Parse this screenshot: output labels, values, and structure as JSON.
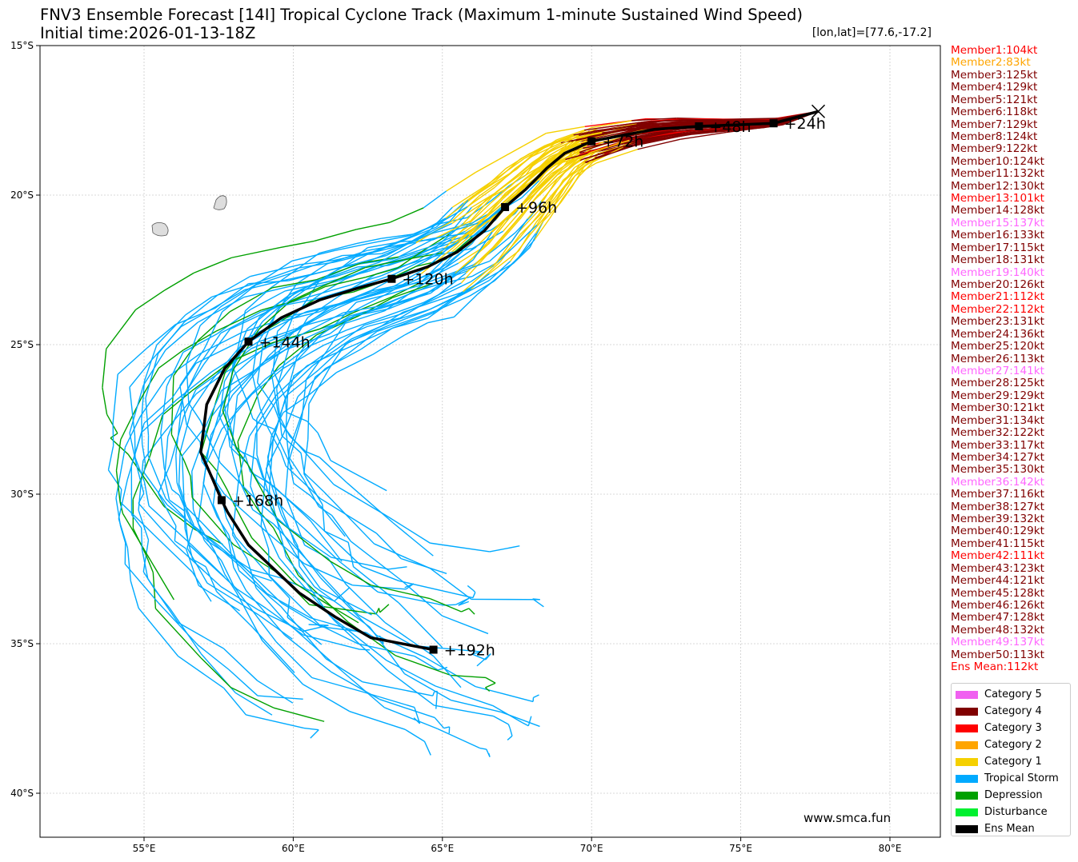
{
  "title": "FNV3 Ensemble Forecast [14I] Tropical Cyclone Track (Maximum 1-minute Sustained Wind Speed)",
  "subtitle": "Initial time:2026-01-13-18Z",
  "coord_readout": "[lon,lat]=[77.6,-17.2]",
  "watermark": "www.smca.fun",
  "colors": {
    "cat5": "#f060f0",
    "cat4": "#800000",
    "cat3": "#ff0000",
    "cat2": "#ffa500",
    "cat1": "#f5d000",
    "ts": "#00aaff",
    "td": "#00a000",
    "dist": "#00f030",
    "mean": "#000000"
  },
  "members": [
    {
      "label": "Member1:104kt",
      "cat": "cat3"
    },
    {
      "label": "Member2:83kt",
      "cat": "cat2"
    },
    {
      "label": "Member3:125kt",
      "cat": "cat4"
    },
    {
      "label": "Member4:129kt",
      "cat": "cat4"
    },
    {
      "label": "Member5:121kt",
      "cat": "cat4"
    },
    {
      "label": "Member6:118kt",
      "cat": "cat4"
    },
    {
      "label": "Member7:129kt",
      "cat": "cat4"
    },
    {
      "label": "Member8:124kt",
      "cat": "cat4"
    },
    {
      "label": "Member9:122kt",
      "cat": "cat4"
    },
    {
      "label": "Member10:124kt",
      "cat": "cat4"
    },
    {
      "label": "Member11:132kt",
      "cat": "cat4"
    },
    {
      "label": "Member12:130kt",
      "cat": "cat4"
    },
    {
      "label": "Member13:101kt",
      "cat": "cat3"
    },
    {
      "label": "Member14:128kt",
      "cat": "cat4"
    },
    {
      "label": "Member15:137kt",
      "cat": "cat5"
    },
    {
      "label": "Member16:133kt",
      "cat": "cat4"
    },
    {
      "label": "Member17:115kt",
      "cat": "cat4"
    },
    {
      "label": "Member18:131kt",
      "cat": "cat4"
    },
    {
      "label": "Member19:140kt",
      "cat": "cat5"
    },
    {
      "label": "Member20:126kt",
      "cat": "cat4"
    },
    {
      "label": "Member21:112kt",
      "cat": "cat3"
    },
    {
      "label": "Member22:112kt",
      "cat": "cat3"
    },
    {
      "label": "Member23:131kt",
      "cat": "cat4"
    },
    {
      "label": "Member24:136kt",
      "cat": "cat4"
    },
    {
      "label": "Member25:120kt",
      "cat": "cat4"
    },
    {
      "label": "Member26:113kt",
      "cat": "cat4"
    },
    {
      "label": "Member27:141kt",
      "cat": "cat5"
    },
    {
      "label": "Member28:125kt",
      "cat": "cat4"
    },
    {
      "label": "Member29:129kt",
      "cat": "cat4"
    },
    {
      "label": "Member30:121kt",
      "cat": "cat4"
    },
    {
      "label": "Member31:134kt",
      "cat": "cat4"
    },
    {
      "label": "Member32:122kt",
      "cat": "cat4"
    },
    {
      "label": "Member33:117kt",
      "cat": "cat4"
    },
    {
      "label": "Member34:127kt",
      "cat": "cat4"
    },
    {
      "label": "Member35:130kt",
      "cat": "cat4"
    },
    {
      "label": "Member36:142kt",
      "cat": "cat5"
    },
    {
      "label": "Member37:116kt",
      "cat": "cat4"
    },
    {
      "label": "Member38:127kt",
      "cat": "cat4"
    },
    {
      "label": "Member39:132kt",
      "cat": "cat4"
    },
    {
      "label": "Member40:129kt",
      "cat": "cat4"
    },
    {
      "label": "Member41:115kt",
      "cat": "cat4"
    },
    {
      "label": "Member42:111kt",
      "cat": "cat3"
    },
    {
      "label": "Member43:123kt",
      "cat": "cat4"
    },
    {
      "label": "Member44:121kt",
      "cat": "cat4"
    },
    {
      "label": "Member45:128kt",
      "cat": "cat4"
    },
    {
      "label": "Member46:126kt",
      "cat": "cat4"
    },
    {
      "label": "Member47:128kt",
      "cat": "cat4"
    },
    {
      "label": "Member48:132kt",
      "cat": "cat4"
    },
    {
      "label": "Member49:137kt",
      "cat": "cat5"
    },
    {
      "label": "Member50:113kt",
      "cat": "cat4"
    },
    {
      "label": "Ens Mean:112kt",
      "cat": "cat3"
    }
  ],
  "legend": [
    {
      "label": "Category 5",
      "key": "cat5"
    },
    {
      "label": "Category 4",
      "key": "cat4"
    },
    {
      "label": "Category 3",
      "key": "cat3"
    },
    {
      "label": "Category 2",
      "key": "cat2"
    },
    {
      "label": "Category 1",
      "key": "cat1"
    },
    {
      "label": "Tropical Storm",
      "key": "ts"
    },
    {
      "label": "Depression",
      "key": "td"
    },
    {
      "label": "Disturbance",
      "key": "dist"
    },
    {
      "label": "Ens Mean",
      "key": "mean"
    }
  ],
  "chart_data": {
    "type": "line",
    "xlim": [
      51.5,
      81.7
    ],
    "ylim": [
      -41.5,
      -15
    ],
    "grid": true,
    "x_ticks": [
      {
        "v": 55,
        "label": "55°E"
      },
      {
        "v": 60,
        "label": "60°E"
      },
      {
        "v": 65,
        "label": "65°E"
      },
      {
        "v": 70,
        "label": "70°E"
      },
      {
        "v": 75,
        "label": "75°E"
      },
      {
        "v": 80,
        "label": "80°E"
      }
    ],
    "y_ticks": [
      {
        "v": -15,
        "label": "15°S"
      },
      {
        "v": -20,
        "label": "20°S"
      },
      {
        "v": -25,
        "label": "25°S"
      },
      {
        "v": -30,
        "label": "30°S"
      },
      {
        "v": -35,
        "label": "35°S"
      },
      {
        "v": -40,
        "label": "40°S"
      }
    ],
    "initial_position": [
      77.6,
      -17.2
    ],
    "ens_mean_track": [
      [
        77.6,
        -17.2
      ],
      [
        76.1,
        -17.6
      ],
      [
        73.6,
        -17.7
      ],
      [
        72.1,
        -17.8
      ],
      [
        70.0,
        -18.2
      ],
      [
        69.1,
        -18.6
      ],
      [
        68.5,
        -19.1
      ],
      [
        67.8,
        -19.8
      ],
      [
        67.1,
        -20.4
      ],
      [
        66.4,
        -21.2
      ],
      [
        65.5,
        -21.9
      ],
      [
        64.5,
        -22.4
      ],
      [
        63.3,
        -22.8
      ],
      [
        62.2,
        -23.1
      ],
      [
        60.9,
        -23.5
      ],
      [
        59.6,
        -24.1
      ],
      [
        58.5,
        -24.9
      ],
      [
        57.7,
        -25.8
      ],
      [
        57.1,
        -27.0
      ],
      [
        56.9,
        -28.6
      ],
      [
        57.3,
        -29.5
      ],
      [
        57.6,
        -30.2
      ],
      [
        57.8,
        -30.6
      ],
      [
        58.5,
        -31.7
      ],
      [
        60.2,
        -33.3
      ],
      [
        61.4,
        -34.1
      ],
      [
        62.6,
        -34.8
      ],
      [
        64.7,
        -35.2
      ]
    ],
    "ens_mean_markers": [
      {
        "label": "+24h",
        "lon": 76.1,
        "lat": -17.6
      },
      {
        "label": "+48h",
        "lon": 73.6,
        "lat": -17.7
      },
      {
        "label": "+72h",
        "lon": 70.0,
        "lat": -18.2
      },
      {
        "label": "+96h",
        "lon": 67.1,
        "lat": -20.4
      },
      {
        "label": "+120h",
        "lon": 63.3,
        "lat": -22.8
      },
      {
        "label": "+144h",
        "lon": 58.5,
        "lat": -24.9
      },
      {
        "label": "+168h",
        "lon": 57.6,
        "lat": -30.2
      },
      {
        "label": "+192h",
        "lon": 64.7,
        "lat": -35.2
      }
    ]
  }
}
